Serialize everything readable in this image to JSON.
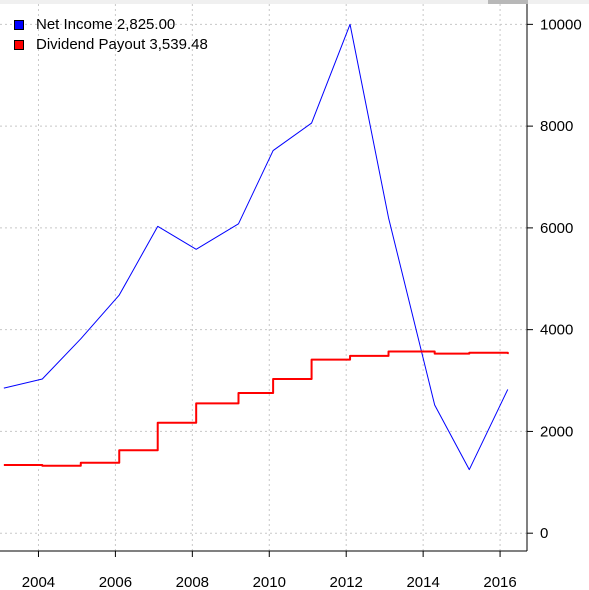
{
  "chart_data": {
    "type": "line",
    "title": "",
    "xlabel": "",
    "ylabel": "",
    "xlim": [
      2003,
      2016.7
    ],
    "ylim": [
      -350,
      10400
    ],
    "x_ticks": [
      2004,
      2006,
      2008,
      2010,
      2012,
      2014,
      2016
    ],
    "x_tick_labels": [
      "2004",
      "2006",
      "2008",
      "2010",
      "2012",
      "2014",
      "2016"
    ],
    "y_ticks": [
      0,
      2000,
      4000,
      6000,
      8000,
      10000
    ],
    "y_tick_labels": [
      "0",
      "2000",
      "4000",
      "6000",
      "8000",
      "10000"
    ],
    "grid": true,
    "legend_position": "top-left",
    "legend": [
      {
        "label": "Net Income 2,825.00",
        "color": "#0000ff"
      },
      {
        "label": "Dividend Payout 3,539.48",
        "color": "#ff0000"
      }
    ],
    "series": [
      {
        "name": "Net Income",
        "color": "#0000ff",
        "style": "line",
        "x": [
          2003.1,
          2004.1,
          2005.1,
          2006.1,
          2007.1,
          2008.1,
          2009.2,
          2010.1,
          2011.1,
          2012.1,
          2013.1,
          2014.3,
          2015.2,
          2016.2
        ],
        "y": [
          2850,
          3030,
          3820,
          4680,
          6030,
          5580,
          6080,
          7520,
          8060,
          10000,
          6200,
          2520,
          1250,
          2825
        ]
      },
      {
        "name": "Dividend Payout",
        "color": "#ff0000",
        "style": "step",
        "x": [
          2003.1,
          2004.1,
          2005.1,
          2006.1,
          2007.1,
          2008.1,
          2009.2,
          2010.1,
          2011.1,
          2012.1,
          2013.1,
          2014.3,
          2015.2,
          2016.2
        ],
        "y": [
          1340,
          1325,
          1385,
          1630,
          2170,
          2550,
          2755,
          3030,
          3410,
          3485,
          3570,
          3530,
          3545,
          3539.48
        ]
      }
    ]
  }
}
